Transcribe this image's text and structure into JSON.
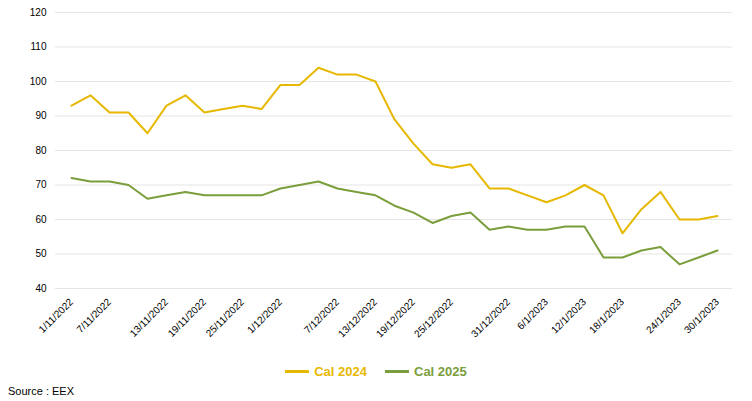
{
  "chart_data": {
    "type": "line",
    "caption": "Source : EEX",
    "categories": [
      "1/11/2022",
      null,
      "7/11/2022",
      null,
      null,
      "13/11/2022",
      null,
      "19/11/2022",
      null,
      "25/11/2022",
      null,
      "1/12/2022",
      null,
      null,
      "7/12/2022",
      null,
      "13/12/2022",
      null,
      "19/12/2022",
      null,
      "25/12/2022",
      null,
      null,
      "31/12/2022",
      null,
      "6/1/2023",
      null,
      "12/1/2023",
      null,
      "18/1/2023",
      null,
      null,
      "24/1/2023",
      null,
      "30/1/2023"
    ],
    "series": [
      {
        "name": "Cal 2024",
        "color": "#e6b800",
        "values": [
          93,
          96,
          91,
          91,
          85,
          93,
          96,
          91,
          92,
          93,
          92,
          99,
          99,
          104,
          102,
          102,
          100,
          89,
          82,
          76,
          75,
          76,
          69,
          69,
          67,
          65,
          67,
          70,
          67,
          56,
          63,
          68,
          60,
          60,
          61
        ]
      },
      {
        "name": "Cal 2025",
        "color": "#7a9e3b",
        "values": [
          72,
          71,
          71,
          70,
          66,
          67,
          68,
          67,
          67,
          67,
          67,
          69,
          70,
          71,
          69,
          68,
          67,
          64,
          62,
          59,
          61,
          62,
          57,
          58,
          57,
          57,
          58,
          58,
          49,
          49,
          51,
          52,
          47,
          49,
          51
        ]
      }
    ],
    "ylim": [
      40,
      120
    ],
    "yticks": [
      40,
      50,
      60,
      70,
      80,
      90,
      100,
      110,
      120
    ],
    "grid": true,
    "legend": "bottom"
  }
}
